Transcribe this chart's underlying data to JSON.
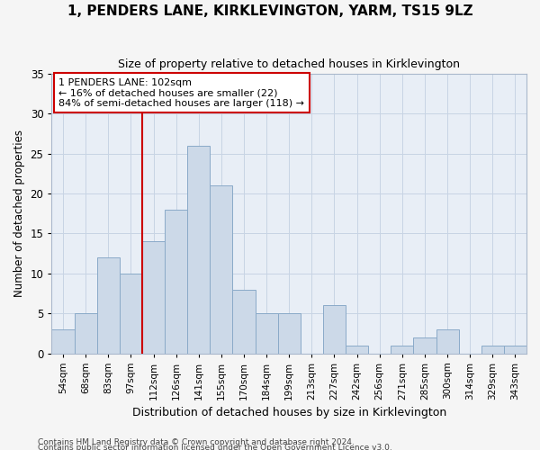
{
  "title": "1, PENDERS LANE, KIRKLEVINGTON, YARM, TS15 9LZ",
  "subtitle": "Size of property relative to detached houses in Kirklevington",
  "xlabel": "Distribution of detached houses by size in Kirklevington",
  "ylabel": "Number of detached properties",
  "categories": [
    "54sqm",
    "68sqm",
    "83sqm",
    "97sqm",
    "112sqm",
    "126sqm",
    "141sqm",
    "155sqm",
    "170sqm",
    "184sqm",
    "199sqm",
    "213sqm",
    "227sqm",
    "242sqm",
    "256sqm",
    "271sqm",
    "285sqm",
    "300sqm",
    "314sqm",
    "329sqm",
    "343sqm"
  ],
  "values": [
    3,
    5,
    12,
    10,
    14,
    18,
    26,
    21,
    8,
    5,
    5,
    0,
    6,
    1,
    0,
    1,
    2,
    3,
    0,
    1,
    1
  ],
  "bar_color": "#ccd9e8",
  "bar_edge_color": "#8aaac8",
  "red_line_x": 3.5,
  "annotation_line1": "1 PENDERS LANE: 102sqm",
  "annotation_line2": "← 16% of detached houses are smaller (22)",
  "annotation_line3": "84% of semi-detached houses are larger (118) →",
  "annotation_box_color": "#ffffff",
  "annotation_box_edge_color": "#cc0000",
  "red_line_color": "#cc0000",
  "grid_color": "#c8d4e4",
  "background_color": "#e8eef6",
  "fig_background": "#f5f5f5",
  "ylim": [
    0,
    35
  ],
  "yticks": [
    0,
    5,
    10,
    15,
    20,
    25,
    30,
    35
  ],
  "footer1": "Contains HM Land Registry data © Crown copyright and database right 2024.",
  "footer2": "Contains public sector information licensed under the Open Government Licence v3.0."
}
